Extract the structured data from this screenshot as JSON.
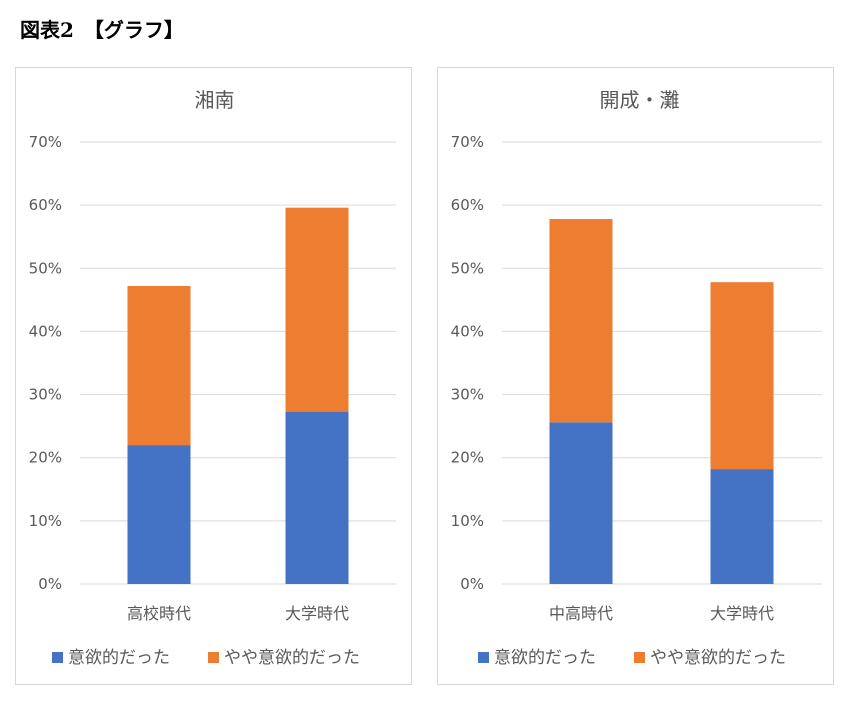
{
  "heading": "図表2　【グラフ】",
  "colors": {
    "series1": "#4472C4",
    "series2": "#ED7D31",
    "grid": "#D9D9D9",
    "text": "#595959"
  },
  "chart_data": [
    {
      "type": "bar",
      "stacked": true,
      "title": "湘南",
      "categories": [
        "高校時代",
        "大学時代"
      ],
      "series": [
        {
          "name": "意欲的だった",
          "values": [
            22,
            27.3
          ]
        },
        {
          "name": "やや意欲的だった",
          "values": [
            25.2,
            32.3
          ]
        }
      ],
      "ylim": [
        0,
        70
      ],
      "yticks": [
        "0%",
        "10%",
        "20%",
        "30%",
        "40%",
        "50%",
        "60%",
        "70%"
      ],
      "grid": true,
      "legend": "bottom"
    },
    {
      "type": "bar",
      "stacked": true,
      "title": "開成・灘",
      "categories": [
        "中高時代",
        "大学時代"
      ],
      "series": [
        {
          "name": "意欲的だった",
          "values": [
            25.6,
            18.2
          ]
        },
        {
          "name": "やや意欲的だった",
          "values": [
            32.2,
            29.6
          ]
        }
      ],
      "ylim": [
        0,
        70
      ],
      "yticks": [
        "0%",
        "10%",
        "20%",
        "30%",
        "40%",
        "50%",
        "60%",
        "70%"
      ],
      "grid": true,
      "legend": "bottom"
    }
  ]
}
